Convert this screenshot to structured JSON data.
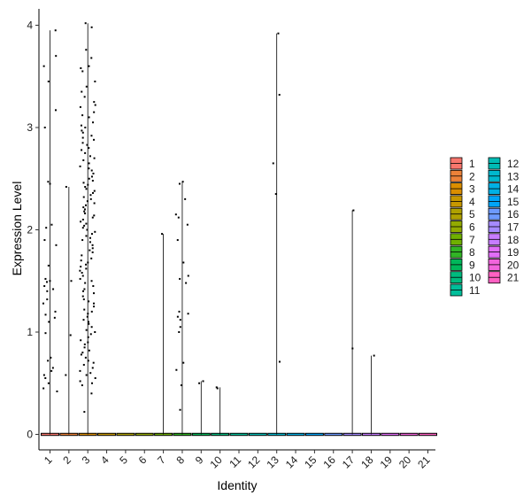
{
  "chart_data": {
    "type": "violin",
    "xlabel": "Identity",
    "ylabel": "Expression Level",
    "ylim": [
      -0.2,
      4.15
    ],
    "yticks": [
      0,
      1,
      2,
      3,
      4
    ],
    "grid": false,
    "legend_position": "right",
    "categories": [
      "1",
      "2",
      "3",
      "4",
      "5",
      "6",
      "7",
      "8",
      "9",
      "10",
      "11",
      "12",
      "13",
      "14",
      "15",
      "16",
      "17",
      "18",
      "19",
      "20",
      "21"
    ],
    "colors": [
      "#F8766D",
      "#EC8239",
      "#DB8E00",
      "#C79800",
      "#AFA100",
      "#93AA00",
      "#6FB000",
      "#31B425",
      "#00B75A",
      "#00BA7E",
      "#00BE9A",
      "#00BCB5",
      "#00B8CE",
      "#00B0E4",
      "#00A5F7",
      "#6D9AFE",
      "#A58AFF",
      "#C77CFF",
      "#E26EF7",
      "#F264DC",
      "#FF61C3"
    ],
    "max_values": [
      3.95,
      2.42,
      4.02,
      0,
      0,
      0,
      1.96,
      2.47,
      0.52,
      0.46,
      0,
      0,
      3.92,
      0,
      0,
      0,
      2.19,
      0.77,
      0,
      0,
      0
    ],
    "points": {
      "1": [
        3.95,
        3.7,
        3.6,
        3.45,
        3.17,
        3.0,
        2.47,
        2.45,
        2.05,
        2.02,
        1.9,
        1.85,
        1.65,
        1.52,
        1.5,
        1.49,
        1.45,
        1.42,
        1.4,
        1.32,
        1.28,
        1.2,
        1.17,
        1.14,
        1.1,
        0.99,
        0.75,
        0.72,
        0.65,
        0.62,
        0.58,
        0.55,
        0.5,
        0.45,
        0.42
      ],
      "2": [
        2.42,
        1.5,
        0.97,
        0.58
      ],
      "3": [
        4.02,
        3.98,
        3.76,
        3.68,
        3.6,
        3.58,
        3.55,
        3.45,
        3.4,
        3.35,
        3.3,
        3.25,
        3.22,
        3.2,
        3.15,
        3.12,
        3.1,
        3.05,
        3.02,
        3.0,
        2.97,
        2.95,
        2.92,
        2.9,
        2.88,
        2.85,
        2.83,
        2.8,
        2.78,
        2.75,
        2.72,
        2.7,
        2.68,
        2.65,
        2.62,
        2.6,
        2.58,
        2.55,
        2.52,
        2.5,
        2.48,
        2.46,
        2.44,
        2.42,
        2.4,
        2.38,
        2.36,
        2.34,
        2.32,
        2.3,
        2.28,
        2.26,
        2.24,
        2.22,
        2.2,
        2.18,
        2.16,
        2.14,
        2.12,
        2.1,
        2.08,
        2.06,
        2.04,
        2.02,
        2.0,
        1.98,
        1.96,
        1.94,
        1.92,
        1.9,
        1.88,
        1.85,
        1.82,
        1.8,
        1.78,
        1.75,
        1.72,
        1.7,
        1.68,
        1.66,
        1.64,
        1.62,
        1.6,
        1.58,
        1.55,
        1.52,
        1.5,
        1.48,
        1.45,
        1.42,
        1.4,
        1.38,
        1.35,
        1.32,
        1.3,
        1.28,
        1.25,
        1.22,
        1.2,
        1.18,
        1.15,
        1.12,
        1.1,
        1.08,
        1.05,
        1.02,
        1.0,
        0.98,
        0.95,
        0.92,
        0.9,
        0.88,
        0.85,
        0.82,
        0.8,
        0.78,
        0.75,
        0.72,
        0.7,
        0.68,
        0.65,
        0.62,
        0.6,
        0.58,
        0.55,
        0.52,
        0.5,
        0.48,
        0.4,
        0.22
      ],
      "7": [
        1.96
      ],
      "8": [
        2.47,
        2.45,
        2.3,
        2.15,
        2.12,
        2.05,
        1.9,
        1.68,
        1.55,
        1.52,
        1.48,
        1.2,
        1.18,
        1.15,
        1.12,
        1.05,
        1.0,
        0.7,
        0.63,
        0.48,
        0.24
      ],
      "9": [
        0.52,
        0.5
      ],
      "10": [
        0.46,
        0.45
      ],
      "13": [
        3.92,
        3.32,
        2.65,
        2.35,
        0.71
      ],
      "17": [
        2.19,
        0.84
      ],
      "18": [
        0.77
      ]
    }
  }
}
